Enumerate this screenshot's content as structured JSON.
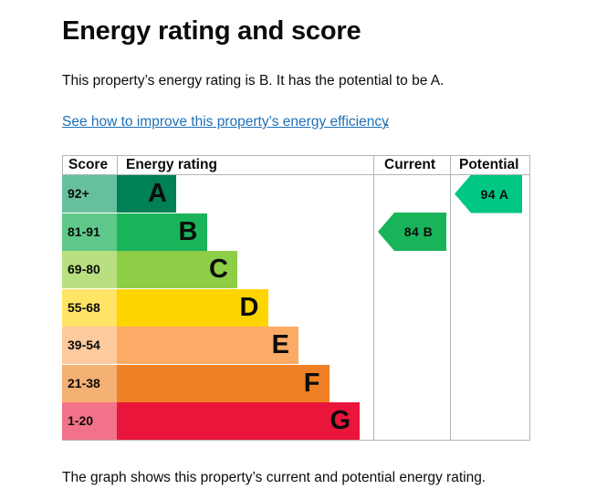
{
  "page": {
    "heading": "Energy rating and score",
    "summary": "This property’s energy rating is B. It has the potential to be A.",
    "improve_link": "See how to improve this property’s energy efficiency",
    "improve_link_suffix": ".",
    "footnote": "The graph shows this property’s current and potential energy rating."
  },
  "chart_data": {
    "type": "table",
    "headers": {
      "score": "Score",
      "rating": "Energy rating",
      "current": "Current",
      "potential": "Potential"
    },
    "bands": [
      {
        "score": "92+",
        "letter": "A",
        "color": "#008054",
        "score_bg": "#66c09b",
        "level": 1
      },
      {
        "score": "81-91",
        "letter": "B",
        "color": "#19b459",
        "score_bg": "#5ec88a",
        "level": 2
      },
      {
        "score": "69-80",
        "letter": "C",
        "color": "#8dce46",
        "score_bg": "#b8e080",
        "level": 3
      },
      {
        "score": "55-68",
        "letter": "D",
        "color": "#ffd500",
        "score_bg": "#ffe466",
        "level": 4
      },
      {
        "score": "39-54",
        "letter": "E",
        "color": "#fcaa65",
        "score_bg": "#fdca9e",
        "level": 5
      },
      {
        "score": "21-38",
        "letter": "F",
        "color": "#ef8023",
        "score_bg": "#f5b073",
        "level": 6
      },
      {
        "score": "1-20",
        "letter": "G",
        "color": "#e9153b",
        "score_bg": "#f2728a",
        "level": 7
      }
    ],
    "current": {
      "label": "84  B",
      "value": 84,
      "band": "B",
      "color": "#19b459"
    },
    "potential": {
      "label": "94  A",
      "value": 94,
      "band": "A",
      "color": "#00c781"
    }
  }
}
